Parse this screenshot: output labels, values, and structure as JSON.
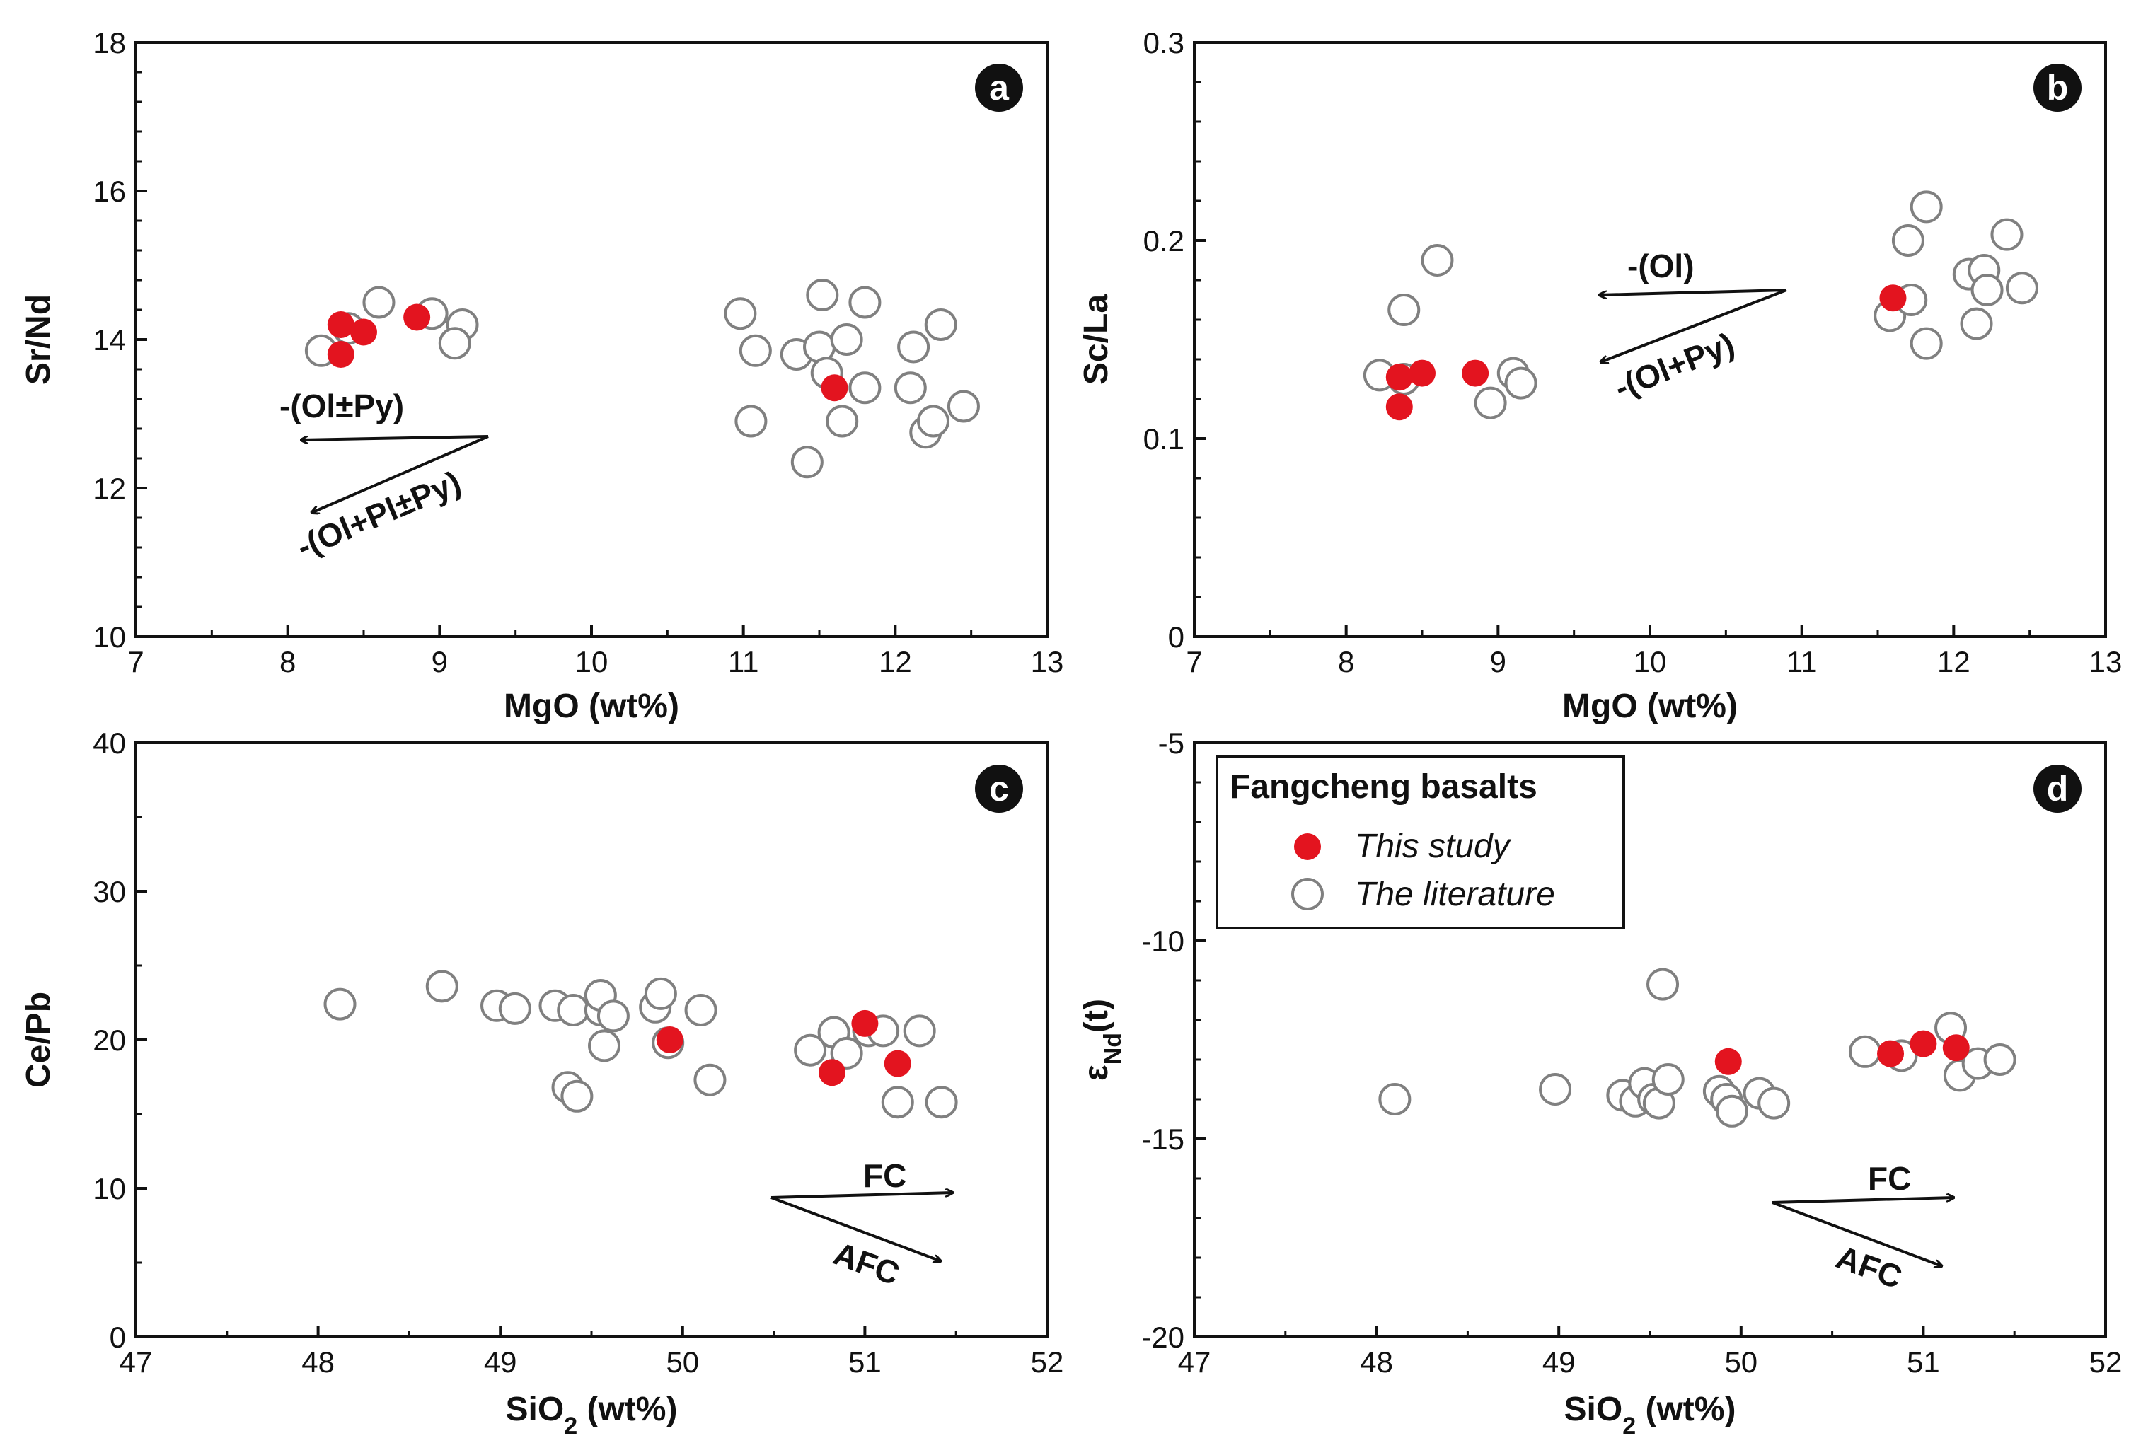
{
  "figure": {
    "legend": {
      "title": "Fangcheng basalts",
      "entries": [
        {
          "label": "This study",
          "style": "filled",
          "color": "#e3141f"
        },
        {
          "label": "The literature",
          "style": "open",
          "color": "#808080"
        }
      ]
    }
  },
  "chart_data": [
    {
      "type": "scatter",
      "panel": "a",
      "xlabel": "MgO (wt%)",
      "ylabel": "Sr/Nd",
      "xlim": [
        7,
        13
      ],
      "ylim": [
        10,
        18
      ],
      "xticks": [
        7,
        8,
        9,
        10,
        11,
        12,
        13
      ],
      "yticks": [
        10,
        12,
        14,
        16,
        18
      ],
      "grid": false,
      "series": [
        {
          "name": "The literature",
          "style": "open",
          "color": "#808080",
          "points": [
            [
              8.22,
              13.85
            ],
            [
              8.4,
              14.15
            ],
            [
              8.6,
              14.5
            ],
            [
              8.95,
              14.35
            ],
            [
              9.15,
              14.2
            ],
            [
              9.1,
              13.95
            ],
            [
              10.98,
              14.35
            ],
            [
              11.08,
              13.85
            ],
            [
              11.05,
              12.9
            ],
            [
              11.35,
              13.8
            ],
            [
              11.5,
              13.9
            ],
            [
              11.52,
              14.6
            ],
            [
              11.55,
              13.55
            ],
            [
              11.68,
              14.0
            ],
            [
              11.8,
              14.5
            ],
            [
              11.8,
              13.35
            ],
            [
              11.65,
              12.9
            ],
            [
              11.42,
              12.35
            ],
            [
              12.1,
              13.35
            ],
            [
              12.12,
              13.9
            ],
            [
              12.3,
              14.2
            ],
            [
              12.2,
              12.75
            ],
            [
              12.25,
              12.9
            ],
            [
              12.45,
              13.1
            ]
          ]
        },
        {
          "name": "This study",
          "style": "filled",
          "color": "#e3141f",
          "points": [
            [
              8.35,
              14.2
            ],
            [
              8.5,
              14.1
            ],
            [
              8.35,
              13.8
            ],
            [
              8.85,
              14.3
            ],
            [
              11.6,
              13.35
            ]
          ]
        }
      ],
      "annotations": [
        "-(Ol±Py)",
        "-(Ol+Pl±Py)"
      ]
    },
    {
      "type": "scatter",
      "panel": "b",
      "xlabel": "MgO (wt%)",
      "ylabel": "Sc/La",
      "xlim": [
        7,
        13
      ],
      "ylim": [
        0,
        0.3
      ],
      "xticks": [
        7,
        8,
        9,
        10,
        11,
        12,
        13
      ],
      "yticks": [
        0,
        0.1,
        0.2,
        0.3
      ],
      "grid": false,
      "series": [
        {
          "name": "The literature",
          "style": "open",
          "color": "#808080",
          "points": [
            [
              8.22,
              0.132
            ],
            [
              8.38,
              0.165
            ],
            [
              8.6,
              0.19
            ],
            [
              8.38,
              0.13
            ],
            [
              8.95,
              0.118
            ],
            [
              9.1,
              0.133
            ],
            [
              9.15,
              0.128
            ],
            [
              11.58,
              0.162
            ],
            [
              11.7,
              0.2
            ],
            [
              11.72,
              0.17
            ],
            [
              11.82,
              0.217
            ],
            [
              11.82,
              0.148
            ],
            [
              12.1,
              0.183
            ],
            [
              12.2,
              0.185
            ],
            [
              12.15,
              0.158
            ],
            [
              12.22,
              0.175
            ],
            [
              12.35,
              0.203
            ],
            [
              12.45,
              0.176
            ]
          ]
        },
        {
          "name": "This study",
          "style": "filled",
          "color": "#e3141f",
          "points": [
            [
              8.35,
              0.131
            ],
            [
              8.5,
              0.133
            ],
            [
              8.35,
              0.116
            ],
            [
              8.85,
              0.133
            ],
            [
              11.6,
              0.171
            ]
          ]
        }
      ],
      "annotations": [
        "-(Ol)",
        "-(Ol+Py)"
      ]
    },
    {
      "type": "scatter",
      "panel": "c",
      "xlabel": "SiO2 (wt%)",
      "ylabel": "Ce/Pb",
      "xlim": [
        47,
        52
      ],
      "ylim": [
        0,
        40
      ],
      "xticks": [
        47,
        48,
        49,
        50,
        51,
        52
      ],
      "yticks": [
        0,
        10,
        20,
        30,
        40
      ],
      "grid": false,
      "series": [
        {
          "name": "The literature",
          "style": "open",
          "color": "#808080",
          "points": [
            [
              48.12,
              22.4
            ],
            [
              48.68,
              23.6
            ],
            [
              48.98,
              22.3
            ],
            [
              49.08,
              22.1
            ],
            [
              49.3,
              22.3
            ],
            [
              49.4,
              22.0
            ],
            [
              49.55,
              22.0
            ],
            [
              49.55,
              23.0
            ],
            [
              49.62,
              21.6
            ],
            [
              49.57,
              19.6
            ],
            [
              49.37,
              16.8
            ],
            [
              49.42,
              16.2
            ],
            [
              49.85,
              22.2
            ],
            [
              49.88,
              23.1
            ],
            [
              49.92,
              19.8
            ],
            [
              50.1,
              22.0
            ],
            [
              50.15,
              17.3
            ],
            [
              50.7,
              19.3
            ],
            [
              50.83,
              20.5
            ],
            [
              50.9,
              19.1
            ],
            [
              51.02,
              20.6
            ],
            [
              51.1,
              20.6
            ],
            [
              51.3,
              20.6
            ],
            [
              51.18,
              15.8
            ],
            [
              51.42,
              15.8
            ]
          ]
        },
        {
          "name": "This study",
          "style": "filled",
          "color": "#e3141f",
          "points": [
            [
              49.93,
              20.0
            ],
            [
              50.82,
              17.8
            ],
            [
              51.0,
              21.1
            ],
            [
              51.18,
              18.4
            ]
          ]
        }
      ],
      "annotations": [
        "FC",
        "AFC"
      ]
    },
    {
      "type": "scatter",
      "panel": "d",
      "xlabel": "SiO2 (wt%)",
      "ylabel": "εNd(t)",
      "xlim": [
        47,
        52
      ],
      "ylim": [
        -20,
        -5
      ],
      "xticks": [
        47,
        48,
        49,
        50,
        51,
        52
      ],
      "yticks": [
        -20,
        -15,
        -10,
        -5
      ],
      "grid": false,
      "series": [
        {
          "name": "The literature",
          "style": "open",
          "color": "#808080",
          "points": [
            [
              48.1,
              -14.0
            ],
            [
              48.98,
              -13.75
            ],
            [
              49.35,
              -13.9
            ],
            [
              49.42,
              -14.05
            ],
            [
              49.47,
              -13.6
            ],
            [
              49.52,
              -14.0
            ],
            [
              49.55,
              -14.1
            ],
            [
              49.6,
              -13.5
            ],
            [
              49.57,
              -11.1
            ],
            [
              49.88,
              -13.8
            ],
            [
              49.92,
              -14.0
            ],
            [
              49.95,
              -14.3
            ],
            [
              50.1,
              -13.85
            ],
            [
              50.18,
              -14.1
            ],
            [
              50.68,
              -12.8
            ],
            [
              50.88,
              -12.9
            ],
            [
              51.15,
              -12.2
            ],
            [
              51.2,
              -13.4
            ],
            [
              51.3,
              -13.1
            ],
            [
              51.42,
              -13.0
            ]
          ]
        },
        {
          "name": "This study",
          "style": "filled",
          "color": "#e3141f",
          "points": [
            [
              49.93,
              -13.05
            ],
            [
              50.82,
              -12.85
            ],
            [
              51.0,
              -12.6
            ],
            [
              51.18,
              -12.7
            ]
          ]
        }
      ],
      "annotations": [
        "FC",
        "AFC"
      ]
    }
  ]
}
